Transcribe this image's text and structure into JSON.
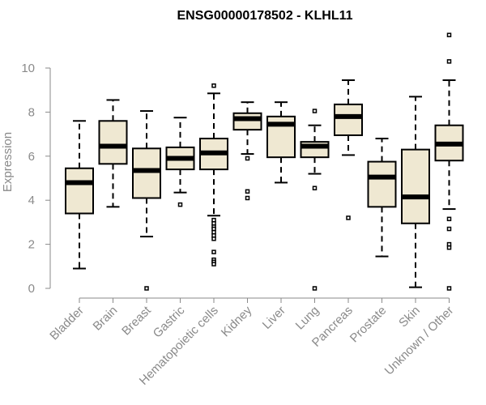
{
  "chart_data": {
    "type": "boxplot",
    "title": "ENSG00000178502 - KLHL11",
    "ylabel": "Expression",
    "xlabel": "",
    "ylim": [
      0,
      11.5
    ],
    "yticks": [
      0,
      2,
      4,
      6,
      8,
      10
    ],
    "box_fill": "#efe8d2",
    "stroke": "#000000",
    "categories": [
      "Bladder",
      "Brain",
      "Breast",
      "Gastric",
      "Hematopoietic cells",
      "Kidney",
      "Liver",
      "Lung",
      "Pancreas",
      "Prostate",
      "Skin",
      "Unknown / Other"
    ],
    "boxes": [
      {
        "name": "Bladder",
        "whisker_low": 0.9,
        "q1": 3.4,
        "median": 4.8,
        "q3": 5.45,
        "whisker_high": 7.6,
        "outliers": []
      },
      {
        "name": "Brain",
        "whisker_low": 3.7,
        "q1": 5.65,
        "median": 6.45,
        "q3": 7.6,
        "whisker_high": 8.55,
        "outliers": []
      },
      {
        "name": "Breast",
        "whisker_low": 2.35,
        "q1": 4.1,
        "median": 5.35,
        "q3": 6.35,
        "whisker_high": 8.05,
        "outliers": [
          0.0
        ]
      },
      {
        "name": "Gastric",
        "whisker_low": 4.35,
        "q1": 5.4,
        "median": 5.9,
        "q3": 6.4,
        "whisker_high": 7.75,
        "outliers": [
          3.8
        ]
      },
      {
        "name": "Hematopoietic cells",
        "whisker_low": 3.3,
        "q1": 5.4,
        "median": 6.15,
        "q3": 6.8,
        "whisker_high": 8.85,
        "outliers": [
          9.2,
          3.1,
          2.95,
          2.8,
          2.7,
          2.55,
          2.4,
          2.25,
          1.65,
          1.3,
          1.2,
          1.1
        ]
      },
      {
        "name": "Kidney",
        "whisker_low": 6.1,
        "q1": 7.2,
        "median": 7.7,
        "q3": 7.95,
        "whisker_high": 8.45,
        "outliers": [
          5.9,
          4.4,
          4.1
        ]
      },
      {
        "name": "Liver",
        "whisker_low": 4.8,
        "q1": 5.95,
        "median": 7.45,
        "q3": 7.8,
        "whisker_high": 8.45,
        "outliers": []
      },
      {
        "name": "Lung",
        "whisker_low": 5.2,
        "q1": 5.95,
        "median": 6.45,
        "q3": 6.65,
        "whisker_high": 7.4,
        "outliers": [
          8.05,
          4.55,
          0.0
        ]
      },
      {
        "name": "Pancreas",
        "whisker_low": 6.05,
        "q1": 6.95,
        "median": 7.8,
        "q3": 8.35,
        "whisker_high": 9.45,
        "outliers": [
          3.2
        ]
      },
      {
        "name": "Prostate",
        "whisker_low": 1.45,
        "q1": 3.7,
        "median": 5.05,
        "q3": 5.75,
        "whisker_high": 6.8,
        "outliers": []
      },
      {
        "name": "Skin",
        "whisker_low": 0.05,
        "q1": 2.95,
        "median": 4.15,
        "q3": 6.3,
        "whisker_high": 8.7,
        "outliers": []
      },
      {
        "name": "Unknown / Other",
        "whisker_low": 3.6,
        "q1": 5.8,
        "median": 6.55,
        "q3": 7.4,
        "whisker_high": 9.45,
        "outliers": [
          11.5,
          10.3,
          3.15,
          2.7,
          2.0,
          1.85,
          0.0
        ]
      }
    ]
  }
}
